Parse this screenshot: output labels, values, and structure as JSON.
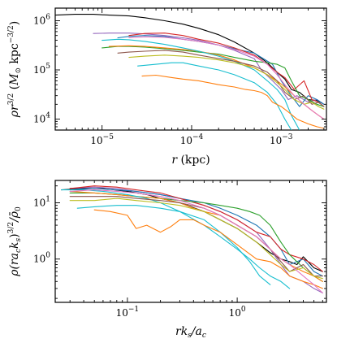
{
  "palette": [
    "#1f77b4",
    "#ff7f0e",
    "#2ca02c",
    "#d62728",
    "#9467bd",
    "#8c564b",
    "#e377c2",
    "#7f7f7f",
    "#bcbd22",
    "#17becf",
    "#000000"
  ],
  "chart_data": [
    {
      "type": "line",
      "xscale": "log",
      "yscale": "log",
      "xlim": [
        3e-06,
        0.0032
      ],
      "ylim": [
        6000,
        1800000
      ],
      "xlabel": "r (kpc)",
      "ylabel": "ρr^{3/2} (M_⊙ kpc^{−3/2})",
      "xticks": [
        {
          "value": 1e-05,
          "base": "10",
          "exp": "−5"
        },
        {
          "value": 0.0001,
          "base": "10",
          "exp": "−4"
        },
        {
          "value": 0.001,
          "base": "10",
          "exp": "−3"
        }
      ],
      "yticks": [
        {
          "value": 10000,
          "base": "10",
          "exp": "4"
        },
        {
          "value": 100000,
          "base": "10",
          "exp": "5"
        },
        {
          "value": 1000000,
          "base": "10",
          "exp": "6"
        }
      ],
      "series": [
        {
          "color": "#000000",
          "x": [
            3e-06,
            5e-06,
            8e-06,
            1.2e-05,
            2e-05,
            3e-05,
            5e-05,
            8e-05,
            0.00012,
            0.0002,
            0.0003,
            0.0005,
            0.0007,
            0.0009,
            0.0011,
            0.0013,
            0.0016,
            0.002,
            0.0025,
            0.003
          ],
          "y": [
            1300000,
            1350000,
            1350000,
            1300000,
            1250000,
            1150000,
            1000000,
            850000,
            700000,
            520000,
            370000,
            220000,
            140000,
            90000,
            65000,
            40000,
            35000,
            25000,
            24000,
            20000
          ]
        },
        {
          "color": "#9467bd",
          "x": [
            8e-06,
            1.2e-05,
            2e-05,
            3e-05,
            5e-05,
            8e-05,
            0.00012,
            0.0002,
            0.0003,
            0.0004,
            0.0005,
            0.0006,
            0.0008,
            0.001,
            0.0012,
            0.0015,
            0.002,
            0.0025,
            0.003
          ],
          "y": [
            550000,
            560000,
            560000,
            540000,
            500000,
            450000,
            400000,
            320000,
            250000,
            200000,
            170000,
            100000,
            60000,
            40000,
            25000,
            30000,
            22000,
            25000,
            20000
          ]
        },
        {
          "color": "#1f77b4",
          "x": [
            1.5e-05,
            2e-05,
            3e-05,
            5e-05,
            8e-05,
            0.00012,
            0.0002,
            0.0003,
            0.0004,
            0.0005,
            0.0006,
            0.0008,
            0.001,
            0.0013,
            0.0016,
            0.002,
            0.0025,
            0.003
          ],
          "y": [
            450000,
            480000,
            500000,
            480000,
            420000,
            380000,
            320000,
            270000,
            240000,
            220000,
            180000,
            130000,
            60000,
            30000,
            18000,
            30000,
            25000,
            20000
          ]
        },
        {
          "color": "#d62728",
          "x": [
            2e-05,
            3e-05,
            5e-05,
            8e-05,
            0.00012,
            0.0002,
            0.0003,
            0.0005,
            0.0007,
            0.0009,
            0.0011,
            0.0014,
            0.0018,
            0.0022,
            0.0026,
            0.003
          ],
          "y": [
            500000,
            550000,
            560000,
            500000,
            420000,
            350000,
            280000,
            200000,
            130000,
            90000,
            70000,
            40000,
            60000,
            25000,
            22000,
            18000
          ]
        },
        {
          "color": "#2ca02c",
          "x": [
            1e-05,
            1.5e-05,
            2e-05,
            3e-05,
            5e-05,
            8e-05,
            0.00012,
            0.0002,
            0.0003,
            0.0005,
            0.0007,
            0.0009,
            0.0011,
            0.0013,
            0.0016,
            0.002,
            0.0025,
            0.003
          ],
          "y": [
            280000,
            300000,
            300000,
            290000,
            270000,
            250000,
            230000,
            210000,
            180000,
            150000,
            140000,
            130000,
            110000,
            60000,
            30000,
            25000,
            20000,
            18000
          ]
        },
        {
          "color": "#ff7f0e",
          "x": [
            1.2e-05,
            2e-05,
            3e-05,
            5e-05,
            8e-05,
            0.00012,
            0.0002,
            0.0003,
            0.0005,
            0.0007,
            0.0009,
            0.0011,
            0.0014,
            0.0018,
            0.0022,
            0.0026,
            0.003
          ],
          "y": [
            300000,
            310000,
            300000,
            280000,
            260000,
            240000,
            200000,
            160000,
            110000,
            80000,
            60000,
            45000,
            30000,
            20000,
            15000,
            12000,
            10000
          ]
        },
        {
          "color": "#17becf",
          "x": [
            1e-05,
            1.5e-05,
            2e-05,
            3e-05,
            5e-05,
            8e-05,
            0.00012,
            0.0002,
            0.0003,
            0.0005,
            0.0007,
            0.0009,
            0.0011,
            0.0013,
            0.0016
          ],
          "y": [
            400000,
            420000,
            410000,
            380000,
            330000,
            280000,
            240000,
            190000,
            150000,
            100000,
            60000,
            40000,
            25000,
            12000,
            6000
          ]
        },
        {
          "color": "#8c564b",
          "x": [
            1.5e-05,
            2e-05,
            3e-05,
            5e-05,
            8e-05,
            0.00012,
            0.0002,
            0.0003,
            0.0005,
            0.0007,
            0.0009,
            0.0011,
            0.0014,
            0.0018,
            0.0022,
            0.0026,
            0.003
          ],
          "y": [
            220000,
            230000,
            240000,
            250000,
            230000,
            200000,
            170000,
            150000,
            120000,
            90000,
            60000,
            35000,
            25000,
            30000,
            20000,
            22000,
            18000
          ]
        },
        {
          "color": "#bcbd22",
          "x": [
            2e-05,
            3e-05,
            5e-05,
            8e-05,
            0.00012,
            0.0002,
            0.0003,
            0.0005,
            0.0007,
            0.0009,
            0.0011,
            0.0014,
            0.0018,
            0.0022,
            0.0026,
            0.003
          ],
          "y": [
            180000,
            190000,
            200000,
            190000,
            180000,
            160000,
            140000,
            110000,
            80000,
            55000,
            40000,
            25000,
            20000,
            22000,
            18000,
            16000
          ]
        },
        {
          "color": "#17becf",
          "x": [
            2.5e-05,
            4e-05,
            6e-05,
            8e-05,
            0.00012,
            0.0002,
            0.0003,
            0.0005,
            0.0007,
            0.0009,
            0.0011,
            0.0013
          ],
          "y": [
            120000,
            130000,
            140000,
            140000,
            120000,
            100000,
            80000,
            55000,
            35000,
            20000,
            10000,
            6000
          ]
        },
        {
          "color": "#ff7f0e",
          "x": [
            2.8e-05,
            4e-05,
            6e-05,
            8e-05,
            0.00012,
            0.0002,
            0.0003,
            0.0004,
            0.0005,
            0.0006,
            0.0007,
            0.0008,
            0.001,
            0.0012,
            0.0015,
            0.002,
            0.0025,
            0.003
          ],
          "y": [
            75000,
            78000,
            70000,
            65000,
            60000,
            50000,
            45000,
            40000,
            38000,
            35000,
            30000,
            22000,
            18000,
            14000,
            10000,
            8000,
            7000,
            6500
          ]
        },
        {
          "color": "#e377c2",
          "x": [
            2e-05,
            3e-05,
            5e-05,
            8e-05,
            0.00012,
            0.0002,
            0.0003,
            0.0005,
            0.0007,
            0.0009,
            0.0011,
            0.0014,
            0.0018,
            0.0022,
            0.0026,
            0.003
          ],
          "y": [
            450000,
            470000,
            460000,
            420000,
            380000,
            320000,
            260000,
            190000,
            130000,
            80000,
            50000,
            30000,
            20000,
            15000,
            12000,
            10000
          ]
        }
      ]
    },
    {
      "type": "line",
      "xscale": "log",
      "yscale": "log",
      "xlim": [
        0.022,
        6.5
      ],
      "ylim": [
        0.17,
        25
      ],
      "xlabel": "rk_s/a_c",
      "ylabel": "ρ(ra_ck_s)^{3/2}/ρ̄_0",
      "xticks": [
        {
          "value": 0.1,
          "base": "10",
          "exp": "−1"
        },
        {
          "value": 1,
          "base": "10",
          "exp": "0"
        }
      ],
      "yticks": [
        {
          "value": 1,
          "base": "10",
          "exp": "0"
        },
        {
          "value": 10,
          "base": "10",
          "exp": "1"
        }
      ],
      "series": [
        {
          "color": "#000000",
          "x": [
            0.025,
            0.04,
            0.06,
            0.1,
            0.15,
            0.2,
            0.3,
            0.5,
            0.7,
            1,
            1.5,
            2,
            2.5,
            3,
            3.5,
            4,
            5,
            6
          ],
          "y": [
            17,
            18,
            18,
            16,
            14,
            12,
            10,
            7,
            5,
            3.5,
            2,
            1.3,
            1,
            0.9,
            0.8,
            1.1,
            0.7,
            0.6
          ]
        },
        {
          "color": "#9467bd",
          "x": [
            0.03,
            0.05,
            0.08,
            0.12,
            0.2,
            0.3,
            0.5,
            0.7,
            1,
            1.5,
            2,
            2.5,
            3,
            4,
            5,
            6
          ],
          "y": [
            18,
            19,
            18,
            16,
            14,
            12,
            9,
            7,
            5,
            3,
            1.5,
            0.8,
            0.5,
            0.4,
            0.3,
            0.25
          ]
        },
        {
          "color": "#1f77b4",
          "x": [
            0.03,
            0.05,
            0.08,
            0.12,
            0.2,
            0.3,
            0.5,
            0.7,
            1,
            1.5,
            2,
            2.5,
            3,
            4,
            5,
            6
          ],
          "y": [
            17,
            18,
            17,
            16,
            14,
            12,
            10,
            8,
            6,
            4,
            2.5,
            1.5,
            0.8,
            1,
            0.6,
            0.5
          ]
        },
        {
          "color": "#d62728",
          "x": [
            0.03,
            0.05,
            0.08,
            0.12,
            0.2,
            0.3,
            0.5,
            0.7,
            1,
            1.5,
            2,
            2.5,
            3,
            4,
            5,
            6
          ],
          "y": [
            18,
            20,
            19,
            17,
            15,
            12,
            9,
            7,
            5,
            3,
            2.5,
            1.5,
            1.2,
            1,
            0.8,
            0.6
          ]
        },
        {
          "color": "#2ca02c",
          "x": [
            0.03,
            0.05,
            0.08,
            0.12,
            0.2,
            0.3,
            0.5,
            0.7,
            1,
            1.3,
            1.6,
            2,
            2.5,
            3,
            4,
            5,
            6
          ],
          "y": [
            15,
            15,
            14,
            13,
            12,
            11,
            10,
            9,
            8,
            7,
            6,
            4,
            2,
            1.2,
            0.7,
            0.5,
            0.4
          ]
        },
        {
          "color": "#ff7f0e",
          "x": [
            0.03,
            0.05,
            0.08,
            0.12,
            0.2,
            0.3,
            0.4,
            0.5,
            0.7,
            1,
            1.5,
            2,
            2.5,
            3,
            4,
            5,
            6
          ],
          "y": [
            16,
            15,
            14,
            13,
            12,
            10,
            8,
            7,
            6,
            4,
            2.5,
            1.5,
            1,
            0.8,
            0.6,
            0.5,
            0.4
          ]
        },
        {
          "color": "#17becf",
          "x": [
            0.025,
            0.04,
            0.06,
            0.1,
            0.15,
            0.2,
            0.3,
            0.5,
            0.7,
            1,
            1.3,
            1.6,
            2,
            2.5,
            3
          ],
          "y": [
            17,
            17,
            16,
            14,
            12,
            10,
            7,
            4,
            2.5,
            1.5,
            1,
            0.7,
            0.5,
            0.4,
            0.3
          ]
        },
        {
          "color": "#8c564b",
          "x": [
            0.03,
            0.05,
            0.08,
            0.12,
            0.2,
            0.3,
            0.5,
            0.7,
            1,
            1.5,
            2,
            2.5,
            3,
            4,
            5,
            6
          ],
          "y": [
            13,
            13,
            13,
            12,
            11,
            10,
            8,
            6,
            4,
            2.5,
            1.5,
            0.9,
            0.6,
            0.8,
            0.5,
            0.5
          ]
        },
        {
          "color": "#bcbd22",
          "x": [
            0.03,
            0.05,
            0.08,
            0.12,
            0.2,
            0.3,
            0.5,
            0.7,
            1,
            1.5,
            2,
            2.5,
            3,
            4,
            5,
            6
          ],
          "y": [
            11,
            11,
            12,
            11,
            10,
            9,
            7,
            5,
            3.5,
            2,
            1.2,
            0.8,
            0.6,
            0.7,
            0.5,
            0.45
          ]
        },
        {
          "color": "#17becf",
          "x": [
            0.035,
            0.05,
            0.08,
            0.12,
            0.2,
            0.3,
            0.5,
            0.7,
            1,
            1.3,
            1.6,
            2
          ],
          "y": [
            8,
            8.5,
            9,
            9,
            8,
            7,
            5,
            3,
            1.6,
            0.9,
            0.5,
            0.35
          ]
        },
        {
          "color": "#ff7f0e",
          "x": [
            0.05,
            0.07,
            0.1,
            0.12,
            0.15,
            0.2,
            0.25,
            0.3,
            0.4,
            0.5,
            0.7,
            1,
            1.5,
            2,
            2.5,
            3,
            4,
            5,
            6
          ],
          "y": [
            7.5,
            7,
            6,
            3.5,
            4,
            3,
            3.8,
            5,
            5,
            4,
            3,
            1.8,
            1,
            0.9,
            0.7,
            0.5,
            0.4,
            0.35,
            0.3
          ]
        },
        {
          "color": "#e377c2",
          "x": [
            0.03,
            0.05,
            0.08,
            0.12,
            0.2,
            0.3,
            0.5,
            0.7,
            1,
            1.5,
            2,
            2.5,
            3,
            4,
            5,
            6
          ],
          "y": [
            16,
            17,
            16,
            15,
            13,
            11,
            8,
            6,
            4,
            2.5,
            1.5,
            1,
            0.8,
            0.5,
            0.35,
            0.25
          ]
        }
      ]
    }
  ]
}
